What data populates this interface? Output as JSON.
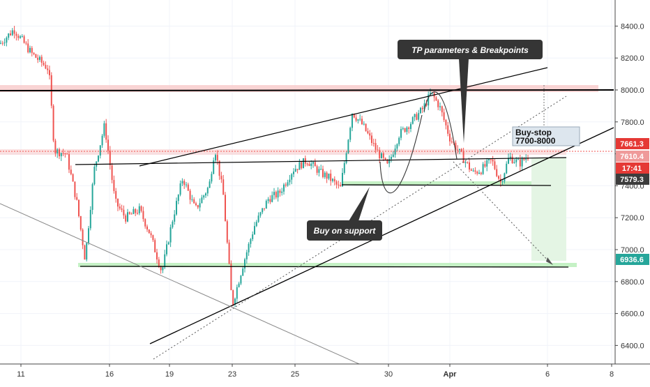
{
  "chart_data": {
    "type": "candlestick",
    "title": "",
    "xlabel": "",
    "ylabel": "",
    "ylim": [
      6150,
      8600
    ],
    "x_ticks": [
      "11",
      "16",
      "19",
      "23",
      "25",
      "30",
      "Apr",
      "6",
      "8"
    ],
    "y_ticks": [
      6400,
      6600,
      6800,
      7000,
      7200,
      7400,
      7600,
      7800,
      8000,
      8200,
      8400
    ],
    "y_tick_labels": [
      "6400.0",
      "6600.0",
      "6800.0",
      "7000.0",
      "7200.0",
      "7400.0",
      "7600.0",
      "7800.0",
      "8000.0",
      "8200.0",
      "8400.0"
    ],
    "price_path": [
      [
        0,
        8290
      ],
      [
        20,
        8380
      ],
      [
        45,
        8230
      ],
      [
        70,
        8130
      ],
      [
        78,
        7620
      ],
      [
        95,
        7600
      ],
      [
        110,
        7300
      ],
      [
        122,
        6940
      ],
      [
        135,
        7500
      ],
      [
        150,
        7780
      ],
      [
        165,
        7300
      ],
      [
        180,
        7200
      ],
      [
        200,
        7250
      ],
      [
        215,
        7100
      ],
      [
        232,
        6860
      ],
      [
        248,
        7200
      ],
      [
        262,
        7450
      ],
      [
        280,
        7250
      ],
      [
        300,
        7400
      ],
      [
        308,
        7640
      ],
      [
        320,
        7350
      ],
      [
        333,
        6650
      ],
      [
        348,
        6900
      ],
      [
        365,
        7150
      ],
      [
        385,
        7320
      ],
      [
        400,
        7350
      ],
      [
        420,
        7500
      ],
      [
        440,
        7560
      ],
      [
        460,
        7480
      ],
      [
        472,
        7450
      ],
      [
        488,
        7380
      ],
      [
        505,
        7860
      ],
      [
        520,
        7780
      ],
      [
        540,
        7620
      ],
      [
        556,
        7520
      ],
      [
        572,
        7720
      ],
      [
        590,
        7800
      ],
      [
        606,
        7880
      ],
      [
        618,
        7980
      ],
      [
        630,
        7900
      ],
      [
        645,
        7700
      ],
      [
        660,
        7600
      ],
      [
        678,
        7480
      ],
      [
        690,
        7500
      ],
      [
        705,
        7560
      ],
      [
        718,
        7420
      ],
      [
        730,
        7580
      ],
      [
        745,
        7540
      ],
      [
        758,
        7590
      ]
    ],
    "horizontal_levels": [
      8000,
      7610.4,
      7400,
      6935
    ],
    "zones": [
      {
        "name": "resistance",
        "from": 7990,
        "to": 8040
      },
      {
        "name": "support",
        "from": 6900,
        "to": 6930
      },
      {
        "name": "support-2",
        "from": 7410,
        "to": 7430
      }
    ],
    "price_tags": [
      {
        "value": 7661.3,
        "label": "7661.3",
        "color": "#e53935"
      },
      {
        "value": 7610.4,
        "label": "7610.4",
        "color": "#ef9a9a"
      },
      {
        "value": 7541,
        "label": "17:41",
        "color": "#e53935"
      },
      {
        "value": 7579.3,
        "label": "7579.3",
        "color": "#3c3c3c"
      },
      {
        "value": 6936.6,
        "label": "6936.6",
        "color": "#26a69a"
      }
    ],
    "annotations": {
      "tp_callout": "TP parameters & Breakpoints",
      "buy_callout": "Buy on support",
      "buystop_title": "Buy-stop",
      "buystop_range": "7700-8000"
    },
    "colors": {
      "up": "#26a69a",
      "down": "#ef5350",
      "resistance_zone": "#f8c9c9",
      "support_zone": "#bff0bf",
      "target_zone": "#e4f5e4",
      "callout_bg": "#353535",
      "buystop_bg": "#dde6ee"
    }
  }
}
